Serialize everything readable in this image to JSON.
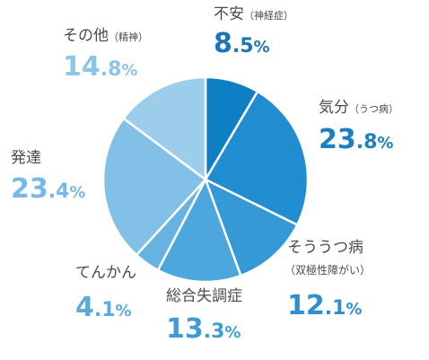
{
  "chart_data": {
    "type": "pie",
    "start": "top",
    "direction": "clockwise",
    "slices": [
      {
        "name": "不安",
        "sub": "（神経症）",
        "value": 8.5,
        "int": "8",
        "frac": ".5",
        "pct": "%",
        "color": "#0f7fc4",
        "text_color": "#1b75b8"
      },
      {
        "name": "気分",
        "sub": "（うつ病）",
        "value": 23.8,
        "int": "23",
        "frac": ".8",
        "pct": "%",
        "color": "#1f8dcf",
        "text_color": "#1b80c3"
      },
      {
        "name": "そううつ病",
        "sub": "（双極性障がい）",
        "value": 12.1,
        "int": "12",
        "frac": ".1",
        "pct": "%",
        "color": "#3599d6",
        "text_color": "#2f8fd0"
      },
      {
        "name": "総合失調症",
        "sub": "",
        "value": 13.3,
        "int": "13",
        "frac": ".3",
        "pct": "%",
        "color": "#4da6dc",
        "text_color": "#3f9bd7"
      },
      {
        "name": "てんかん",
        "sub": "",
        "value": 4.1,
        "int": "4",
        "frac": ".1",
        "pct": "%",
        "color": "#66b3e2",
        "text_color": "#5aaade"
      },
      {
        "name": "発達",
        "sub": "",
        "value": 23.4,
        "int": "23",
        "frac": ".4",
        "pct": "%",
        "color": "#82c0e7",
        "text_color": "#76b9e4"
      },
      {
        "name": "その他",
        "sub": "（精神）",
        "value": 14.8,
        "int": "14",
        "frac": ".8",
        "pct": "%",
        "color": "#9ccdec",
        "text_color": "#8cc4ea"
      }
    ]
  }
}
